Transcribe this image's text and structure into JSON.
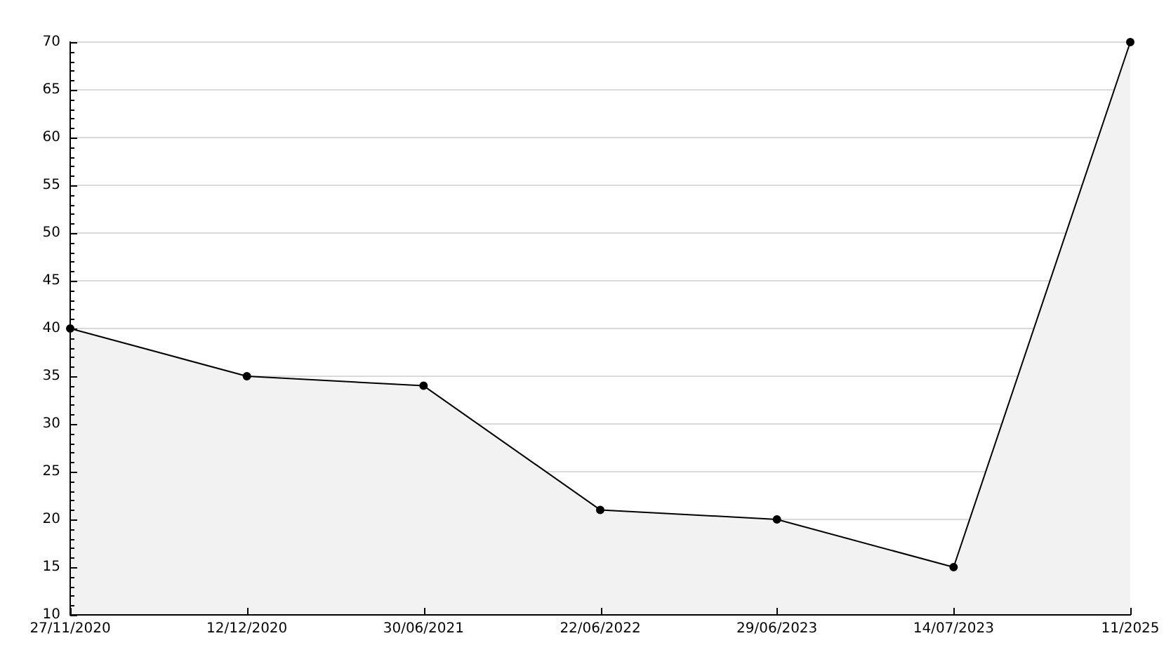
{
  "chart_data": {
    "type": "area",
    "categories": [
      "27/11/2020",
      "12/12/2020",
      "30/06/2021",
      "22/06/2022",
      "29/06/2023",
      "14/07/2023",
      "11/2025"
    ],
    "series": [
      {
        "color": "#f2f2f2",
        "values": [
          40,
          35,
          34,
          21,
          20,
          15,
          70
        ]
      }
    ],
    "ylim": [
      10,
      70
    ],
    "yticks": [
      10,
      {
        "value": 11,
        "label": null
      },
      {
        "value": 12,
        "label": null
      },
      {
        "value": 13,
        "label": null
      },
      {
        "value": 14,
        "label": null
      },
      15,
      {
        "value": 16,
        "label": null
      },
      {
        "value": 17,
        "label": null
      },
      {
        "value": 18,
        "label": null
      },
      {
        "value": 19,
        "label": null
      },
      20,
      {
        "value": 21,
        "label": null
      },
      {
        "value": 22,
        "label": null
      },
      {
        "value": 23,
        "label": null
      },
      {
        "value": 24,
        "label": null
      },
      25,
      {
        "value": 26,
        "label": null
      },
      {
        "value": 27,
        "label": null
      },
      {
        "value": 28,
        "label": null
      },
      {
        "value": 29,
        "label": null
      },
      30,
      {
        "value": 31,
        "label": null
      },
      {
        "value": 32,
        "label": null
      },
      {
        "value": 33,
        "label": null
      },
      {
        "value": 34,
        "label": null
      },
      35,
      {
        "value": 36,
        "label": null
      },
      {
        "value": 37,
        "label": null
      },
      {
        "value": 38,
        "label": null
      },
      {
        "value": 39,
        "label": null
      },
      40,
      {
        "value": 41,
        "label": null
      },
      {
        "value": 42,
        "label": null
      },
      {
        "value": 43,
        "label": null
      },
      {
        "value": 44,
        "label": null
      },
      45,
      {
        "value": 46,
        "label": null
      },
      {
        "value": 47,
        "label": null
      },
      {
        "value": 48,
        "label": null
      },
      {
        "value": 49,
        "label": null
      },
      50,
      {
        "value": 51,
        "label": null
      },
      {
        "value": 52,
        "label": null
      },
      {
        "value": 53,
        "label": null
      },
      {
        "value": 54,
        "label": null
      },
      55,
      {
        "value": 56,
        "label": null
      },
      {
        "value": 57,
        "label": null
      },
      {
        "value": 58,
        "label": null
      },
      {
        "value": 59,
        "label": null
      },
      60,
      {
        "value": 61,
        "label": null
      },
      {
        "value": 62,
        "label": null
      },
      {
        "value": 63,
        "label": null
      },
      {
        "value": 64,
        "label": null
      },
      65,
      {
        "value": 66,
        "label": null
      },
      {
        "value": 67,
        "label": null
      },
      {
        "value": 68,
        "label": null
      },
      {
        "value": 69,
        "label": null
      },
      70
    ],
    "grid": "y",
    "marker": "circle",
    "line_style": "solid"
  }
}
